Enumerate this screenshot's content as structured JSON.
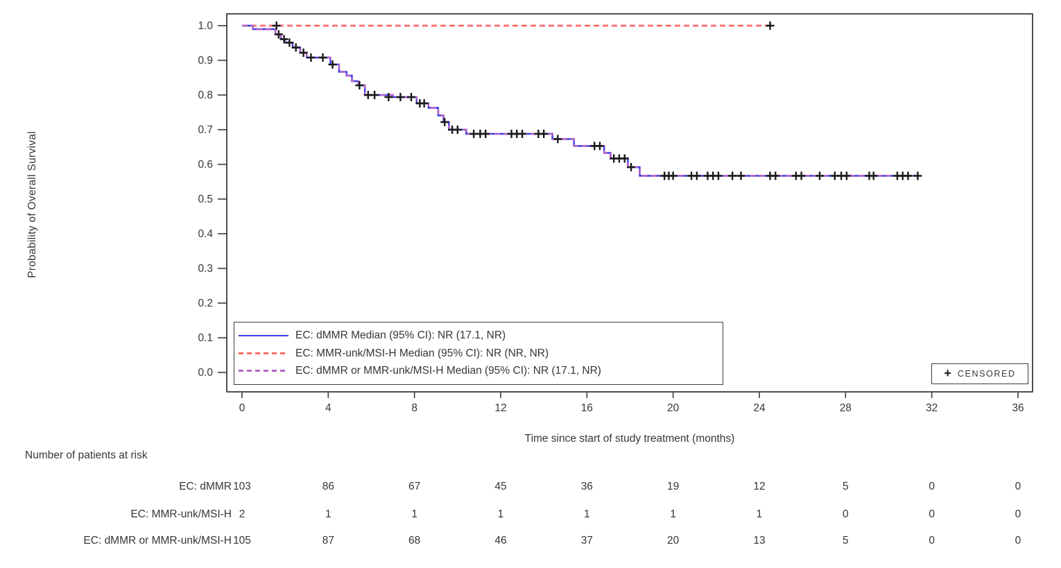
{
  "chart_data": {
    "type": "line",
    "subtype": "kaplan-meier-step",
    "title": "",
    "xlabel": "Time since start of study treatment (months)",
    "ylabel": "Probability of Overall Survival",
    "xlim": [
      0,
      36
    ],
    "ylim": [
      0.0,
      1.0
    ],
    "x_ticks": [
      0,
      4,
      8,
      12,
      16,
      20,
      24,
      28,
      32,
      36
    ],
    "y_ticks": [
      0.0,
      0.1,
      0.2,
      0.3,
      0.4,
      0.5,
      0.6,
      0.7,
      0.8,
      0.9,
      1.0
    ],
    "grid": false,
    "legend_position": "inside-bottom-left",
    "axis_color": "#3c3c3c",
    "censor_color": "#1a1a1a",
    "censored_legend": {
      "marker": "+",
      "label": "CENSORED"
    },
    "series": [
      {
        "name": "EC: dMMR",
        "legend_label": "EC: dMMR Median (95% CI): NR (17.1, NR)",
        "color": "#3a3ae8",
        "style": "solid",
        "end_month": 31.4,
        "steps": [
          [
            0,
            1.0
          ],
          [
            0.5,
            0.99
          ],
          [
            1.55,
            0.975
          ],
          [
            1.8,
            0.961
          ],
          [
            2.0,
            0.951
          ],
          [
            2.35,
            0.937
          ],
          [
            2.7,
            0.922
          ],
          [
            3.0,
            0.908
          ],
          [
            4.1,
            0.888
          ],
          [
            4.5,
            0.867
          ],
          [
            4.85,
            0.856
          ],
          [
            5.1,
            0.84
          ],
          [
            5.4,
            0.828
          ],
          [
            5.7,
            0.8
          ],
          [
            7.0,
            0.794
          ],
          [
            8.1,
            0.776
          ],
          [
            8.65,
            0.763
          ],
          [
            9.1,
            0.741
          ],
          [
            9.35,
            0.722
          ],
          [
            9.6,
            0.7
          ],
          [
            10.4,
            0.688
          ],
          [
            14.4,
            0.673
          ],
          [
            15.4,
            0.653
          ],
          [
            16.8,
            0.633
          ],
          [
            17.1,
            0.617
          ],
          [
            17.9,
            0.592
          ],
          [
            18.45,
            0.567
          ]
        ],
        "censors": [
          [
            1.7,
            0.975
          ],
          [
            1.95,
            0.961
          ],
          [
            2.2,
            0.951
          ],
          [
            2.5,
            0.937
          ],
          [
            2.85,
            0.922
          ],
          [
            3.2,
            0.908
          ],
          [
            3.75,
            0.908
          ],
          [
            4.2,
            0.888
          ],
          [
            5.45,
            0.828
          ],
          [
            5.85,
            0.8
          ],
          [
            6.15,
            0.8
          ],
          [
            6.8,
            0.794
          ],
          [
            7.35,
            0.794
          ],
          [
            7.85,
            0.794
          ],
          [
            8.25,
            0.776
          ],
          [
            8.45,
            0.776
          ],
          [
            9.4,
            0.722
          ],
          [
            9.75,
            0.7
          ],
          [
            10.0,
            0.7
          ],
          [
            10.75,
            0.688
          ],
          [
            11.05,
            0.688
          ],
          [
            11.3,
            0.688
          ],
          [
            12.5,
            0.688
          ],
          [
            12.75,
            0.688
          ],
          [
            13.0,
            0.688
          ],
          [
            13.75,
            0.688
          ],
          [
            14.0,
            0.688
          ],
          [
            14.65,
            0.673
          ],
          [
            16.35,
            0.653
          ],
          [
            16.6,
            0.653
          ],
          [
            17.25,
            0.617
          ],
          [
            17.5,
            0.617
          ],
          [
            17.75,
            0.617
          ],
          [
            18.05,
            0.592
          ],
          [
            19.6,
            0.567
          ],
          [
            19.8,
            0.567
          ],
          [
            20.0,
            0.567
          ],
          [
            20.85,
            0.567
          ],
          [
            21.1,
            0.567
          ],
          [
            21.6,
            0.567
          ],
          [
            21.85,
            0.567
          ],
          [
            22.1,
            0.567
          ],
          [
            22.75,
            0.567
          ],
          [
            23.15,
            0.567
          ],
          [
            24.5,
            0.567
          ],
          [
            24.75,
            0.567
          ],
          [
            25.7,
            0.567
          ],
          [
            25.95,
            0.567
          ],
          [
            26.8,
            0.567
          ],
          [
            27.5,
            0.567
          ],
          [
            27.8,
            0.567
          ],
          [
            28.05,
            0.567
          ],
          [
            29.1,
            0.567
          ],
          [
            29.3,
            0.567
          ],
          [
            30.4,
            0.567
          ],
          [
            30.65,
            0.567
          ],
          [
            30.9,
            0.567
          ],
          [
            31.35,
            0.567
          ]
        ]
      },
      {
        "name": "EC: MMR-unk/MSI-H",
        "legend_label": "EC: MMR-unk/MSI-H Median (95% CI): NR (NR, NR)",
        "color": "#ff6b6b",
        "style": "dashed",
        "end_month": 24.5,
        "steps": [
          [
            0,
            1.0
          ]
        ],
        "censors": [
          [
            1.6,
            1.0
          ],
          [
            24.5,
            1.0
          ]
        ]
      },
      {
        "name": "EC: dMMR or MMR-unk/MSI-H",
        "legend_label": "EC: dMMR or MMR-unk/MSI-H Median (95% CI): NR (17.1, NR)",
        "color": "#b266c9",
        "style": "dashed",
        "end_month": 31.4,
        "steps": [
          [
            0,
            1.0
          ],
          [
            0.5,
            0.99
          ],
          [
            1.55,
            0.975
          ],
          [
            1.8,
            0.961
          ],
          [
            2.0,
            0.951
          ],
          [
            2.35,
            0.937
          ],
          [
            2.7,
            0.922
          ],
          [
            3.0,
            0.908
          ],
          [
            4.1,
            0.888
          ],
          [
            4.5,
            0.867
          ],
          [
            4.85,
            0.856
          ],
          [
            5.1,
            0.84
          ],
          [
            5.4,
            0.828
          ],
          [
            5.7,
            0.8
          ],
          [
            7.0,
            0.794
          ],
          [
            8.1,
            0.776
          ],
          [
            8.65,
            0.763
          ],
          [
            9.1,
            0.741
          ],
          [
            9.35,
            0.722
          ],
          [
            9.6,
            0.7
          ],
          [
            10.4,
            0.688
          ],
          [
            14.4,
            0.673
          ],
          [
            15.4,
            0.653
          ],
          [
            16.8,
            0.633
          ],
          [
            17.1,
            0.617
          ],
          [
            17.9,
            0.592
          ],
          [
            18.45,
            0.567
          ]
        ],
        "censors": []
      }
    ]
  },
  "at_risk": {
    "heading": "Number of patients at risk",
    "time_points": [
      0,
      4,
      8,
      12,
      16,
      20,
      24,
      28,
      32,
      36
    ],
    "rows": [
      {
        "label": "EC: dMMR",
        "counts": [
          103,
          86,
          67,
          45,
          36,
          19,
          12,
          5,
          0,
          0
        ]
      },
      {
        "label": "EC: MMR-unk/MSI-H",
        "counts": [
          2,
          1,
          1,
          1,
          1,
          1,
          1,
          0,
          0,
          0
        ]
      },
      {
        "label": "EC: dMMR or MMR-unk/MSI-H",
        "counts": [
          105,
          87,
          68,
          46,
          37,
          20,
          13,
          5,
          0,
          0
        ]
      }
    ]
  }
}
